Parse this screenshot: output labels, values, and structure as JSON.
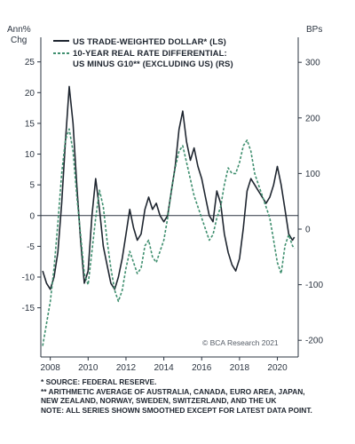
{
  "chart_data": {
    "type": "line",
    "left_axis_title": [
      "Ann%",
      "Chg"
    ],
    "right_axis_title": "BPs",
    "xlim": [
      2007.5,
      2021.1
    ],
    "y_left_lim": [
      -23,
      29
    ],
    "y_right_lim": [
      -230,
      345
    ],
    "x_ticks": [
      "2008",
      "2010",
      "2012",
      "2014",
      "2016",
      "2018",
      "2020"
    ],
    "y_left_ticks": [
      "25",
      "20",
      "15",
      "10",
      "5",
      "0",
      "-5",
      "-10",
      "-15"
    ],
    "y_right_ticks": [
      "300",
      "200",
      "100",
      "0",
      "-100",
      "-200"
    ],
    "legend": [
      "US TRADE-WEIGHTED DOLLAR* (LS)",
      "10-YEAR REAL RATE DIFFERENTIAL:",
      "US MINUS G10** (EXCLUDING US) (RS)"
    ],
    "series": [
      {
        "axis": "left",
        "color": "#1f2630",
        "x": [
          2007.6,
          2007.8,
          2008.0,
          2008.2,
          2008.4,
          2008.6,
          2008.8,
          2009.0,
          2009.2,
          2009.4,
          2009.6,
          2009.8,
          2010.0,
          2010.2,
          2010.4,
          2010.6,
          2010.8,
          2011.0,
          2011.2,
          2011.4,
          2011.6,
          2011.8,
          2012.0,
          2012.2,
          2012.4,
          2012.6,
          2012.8,
          2013.0,
          2013.2,
          2013.4,
          2013.6,
          2013.8,
          2014.0,
          2014.2,
          2014.4,
          2014.6,
          2014.8,
          2015.0,
          2015.2,
          2015.4,
          2015.6,
          2015.8,
          2016.0,
          2016.2,
          2016.4,
          2016.6,
          2016.8,
          2017.0,
          2017.2,
          2017.4,
          2017.6,
          2017.8,
          2018.0,
          2018.2,
          2018.4,
          2018.6,
          2018.8,
          2019.0,
          2019.2,
          2019.4,
          2019.6,
          2019.8,
          2020.0,
          2020.2,
          2020.4,
          2020.6,
          2020.8,
          2020.9
        ],
        "y": [
          -9,
          -11,
          -12,
          -10,
          -6,
          2,
          12,
          21,
          15,
          5,
          -4,
          -11,
          -9,
          0,
          6,
          1,
          -5,
          -8,
          -11,
          -12,
          -10,
          -7,
          -3,
          1,
          -2,
          -4,
          -3,
          1,
          3,
          1,
          2,
          0,
          -1,
          0,
          4,
          8,
          14,
          17,
          12,
          9,
          11,
          8,
          6,
          3,
          0,
          -1,
          4,
          2,
          -3,
          -6,
          -8,
          -9,
          -7,
          -2,
          4,
          6,
          5,
          4,
          3,
          2,
          3,
          5,
          8,
          5,
          1,
          -3,
          -4,
          -3.5
        ]
      },
      {
        "axis": "right",
        "color": "#3f8f6f",
        "dashed": true,
        "x": [
          2007.6,
          2007.8,
          2008.0,
          2008.2,
          2008.4,
          2008.6,
          2008.8,
          2009.0,
          2009.2,
          2009.4,
          2009.6,
          2009.8,
          2010.0,
          2010.2,
          2010.4,
          2010.6,
          2010.8,
          2011.0,
          2011.2,
          2011.4,
          2011.6,
          2011.8,
          2012.0,
          2012.2,
          2012.4,
          2012.6,
          2012.8,
          2013.0,
          2013.2,
          2013.4,
          2013.6,
          2013.8,
          2014.0,
          2014.2,
          2014.4,
          2014.6,
          2014.8,
          2015.0,
          2015.2,
          2015.4,
          2015.6,
          2015.8,
          2016.0,
          2016.2,
          2016.4,
          2016.6,
          2016.8,
          2017.0,
          2017.2,
          2017.4,
          2017.6,
          2017.8,
          2018.0,
          2018.2,
          2018.4,
          2018.6,
          2018.8,
          2019.0,
          2019.2,
          2019.4,
          2019.6,
          2019.8,
          2020.0,
          2020.2,
          2020.4,
          2020.6,
          2020.8,
          2020.9
        ],
        "y": [
          -210,
          -170,
          -130,
          -70,
          10,
          100,
          160,
          180,
          140,
          60,
          -10,
          -80,
          -100,
          -40,
          20,
          70,
          40,
          -20,
          -70,
          -110,
          -130,
          -110,
          -70,
          -40,
          -60,
          -80,
          -70,
          -30,
          -20,
          -50,
          -60,
          -40,
          -20,
          20,
          70,
          110,
          140,
          150,
          120,
          90,
          60,
          40,
          20,
          0,
          -20,
          -10,
          20,
          40,
          80,
          110,
          100,
          100,
          120,
          150,
          160,
          140,
          100,
          80,
          60,
          40,
          20,
          -20,
          -60,
          -80,
          -30,
          -10,
          -30,
          -35
        ]
      }
    ]
  },
  "credit": "© BCA Research 2021",
  "notes": [
    "* SOURCE: FEDERAL RESERVE.",
    "** ARITHMETIC AVERAGE OF AUSTRALIA, CANADA, EURO AREA, JAPAN,",
    "   NEW ZEALAND, NORWAY, SWEDEN, SWITZERLAND, AND THE UK",
    "NOTE: ALL SERIES SHOWN SMOOTHED EXCEPT FOR LATEST DATA POINT."
  ]
}
